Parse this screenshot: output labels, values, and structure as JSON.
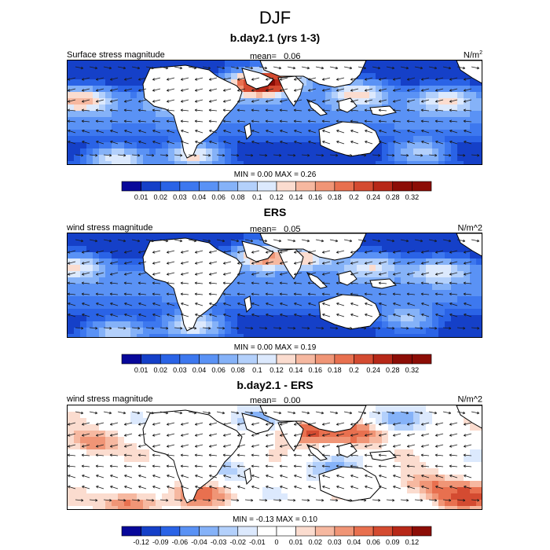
{
  "page": {
    "title": "DJF"
  },
  "colors": {
    "land": "#ffffff",
    "arrow": "#1a1a1a",
    "coast": "#000000",
    "posScale": [
      "#08089a",
      "#1540c8",
      "#2a63e6",
      "#3d78ef",
      "#5a92f5",
      "#85b2f8",
      "#b3d0fb",
      "#dce9fd",
      "#fbdccf",
      "#f6b8a0",
      "#f09576",
      "#e8704f",
      "#d44b31",
      "#b72818",
      "#8c0d06"
    ],
    "diffScale": [
      "#08089a",
      "#1540c8",
      "#2a63e6",
      "#5a92f5",
      "#85b2f8",
      "#b3d0fb",
      "#dce9fd",
      "#ffffff",
      "#ffffff",
      "#fbdccf",
      "#f6b8a0",
      "#f09576",
      "#e8704f",
      "#d44b31",
      "#b72818",
      "#8c0d06"
    ]
  },
  "chart_data": [
    {
      "type": "heatmap",
      "title": "b.day2.1 (yrs 1-3)",
      "left_label": "Surface stress magnitude",
      "mean_label": "mean=",
      "mean_value": "0.06",
      "units": "N/m",
      "units_sup": "2",
      "stats": {
        "min_label": "MIN =",
        "min": "0.00",
        "max_label": "MAX =",
        "max": "0.26"
      },
      "colorbar_ticks": [
        "0.01",
        "0.02",
        "0.03",
        "0.04",
        "0.06",
        "0.08",
        "0.1",
        "0.12",
        "0.14",
        "0.16",
        "0.18",
        "0.2",
        "0.24",
        "0.28",
        "0.32"
      ],
      "levels": [
        0.01,
        0.02,
        0.03,
        0.04,
        0.06,
        0.08,
        0.1,
        0.12,
        0.14,
        0.16,
        0.18,
        0.2,
        0.24,
        0.28,
        0.32
      ],
      "lon_range": [
        -30,
        300
      ],
      "lat_range": [
        -40,
        40
      ],
      "blobs": [
        {
          "lon": -20,
          "lat": 10,
          "v": 0.12
        },
        {
          "lon": 10,
          "lat": -35,
          "v": 0.11
        },
        {
          "lon": 70,
          "lat": -32,
          "v": 0.12
        },
        {
          "lon": 120,
          "lat": 22,
          "v": 0.22
        },
        {
          "lon": 140,
          "lat": 25,
          "v": 0.13
        },
        {
          "lon": 200,
          "lat": 15,
          "v": 0.11
        },
        {
          "lon": 270,
          "lat": 10,
          "v": 0.09
        },
        {
          "lon": 250,
          "lat": -30,
          "v": 0.08
        },
        {
          "lon": 60,
          "lat": 10,
          "v": 0.09
        }
      ]
    },
    {
      "type": "heatmap",
      "title": "ERS",
      "left_label": "wind stress magnitude",
      "mean_label": "mean=",
      "mean_value": "0.05",
      "units": "N/m^2",
      "units_sup": "",
      "stats": {
        "min_label": "MIN =",
        "min": "0.00",
        "max_label": "MAX =",
        "max": "0.19"
      },
      "colorbar_ticks": [
        "0.01",
        "0.02",
        "0.03",
        "0.04",
        "0.06",
        "0.08",
        "0.1",
        "0.12",
        "0.14",
        "0.16",
        "0.18",
        "0.2",
        "0.24",
        "0.28",
        "0.32"
      ],
      "levels": [
        0.01,
        0.02,
        0.03,
        0.04,
        0.06,
        0.08,
        0.1,
        0.12,
        0.14,
        0.16,
        0.18,
        0.2,
        0.24,
        0.28,
        0.32
      ],
      "lon_range": [
        -30,
        300
      ],
      "lat_range": [
        -40,
        40
      ],
      "blobs": [
        {
          "lon": -25,
          "lat": 15,
          "v": 0.1
        },
        {
          "lon": 10,
          "lat": -35,
          "v": 0.09
        },
        {
          "lon": 70,
          "lat": -30,
          "v": 0.11
        },
        {
          "lon": 125,
          "lat": 22,
          "v": 0.15
        },
        {
          "lon": 160,
          "lat": 22,
          "v": 0.11
        },
        {
          "lon": 210,
          "lat": 15,
          "v": 0.09
        },
        {
          "lon": 265,
          "lat": 12,
          "v": 0.08
        },
        {
          "lon": 240,
          "lat": -25,
          "v": 0.07
        }
      ]
    },
    {
      "type": "heatmap",
      "title": "b.day2.1 - ERS",
      "left_label": "wind stress magnitude",
      "mean_label": "mean=",
      "mean_value": "0.00",
      "units": "N/m^2",
      "units_sup": "",
      "stats": {
        "min_label": "MIN =",
        "min": "-0.13",
        "max_label": "MAX =",
        "max": "0.10"
      },
      "colorbar_ticks": [
        "-0.12",
        "-0.09",
        "-0.06",
        "-0.04",
        "-0.03",
        "-0.02",
        "-0.01",
        "0",
        "0.01",
        "0.02",
        "0.03",
        "0.04",
        "0.06",
        "0.09",
        "0.12"
      ],
      "levels": [
        -0.12,
        -0.09,
        -0.06,
        -0.04,
        -0.03,
        -0.02,
        -0.01,
        0,
        0.01,
        0.02,
        0.03,
        0.04,
        0.06,
        0.09,
        0.12
      ],
      "lon_range": [
        -30,
        300
      ],
      "lat_range": [
        -40,
        40
      ],
      "blobs": [
        {
          "lon": -10,
          "lat": 12,
          "v": 0.04
        },
        {
          "lon": 20,
          "lat": -35,
          "v": 0.05
        },
        {
          "lon": 75,
          "lat": -28,
          "v": 0.04
        },
        {
          "lon": 160,
          "lat": 20,
          "v": 0.06
        },
        {
          "lon": 200,
          "lat": 18,
          "v": 0.05
        },
        {
          "lon": 255,
          "lat": -20,
          "v": 0.04
        },
        {
          "lon": 285,
          "lat": -30,
          "v": 0.07
        },
        {
          "lon": 120,
          "lat": 30,
          "v": -0.03
        },
        {
          "lon": 230,
          "lat": 30,
          "v": -0.03
        },
        {
          "lon": 100,
          "lat": -10,
          "v": -0.02
        },
        {
          "lon": 180,
          "lat": -10,
          "v": -0.03
        }
      ]
    }
  ]
}
